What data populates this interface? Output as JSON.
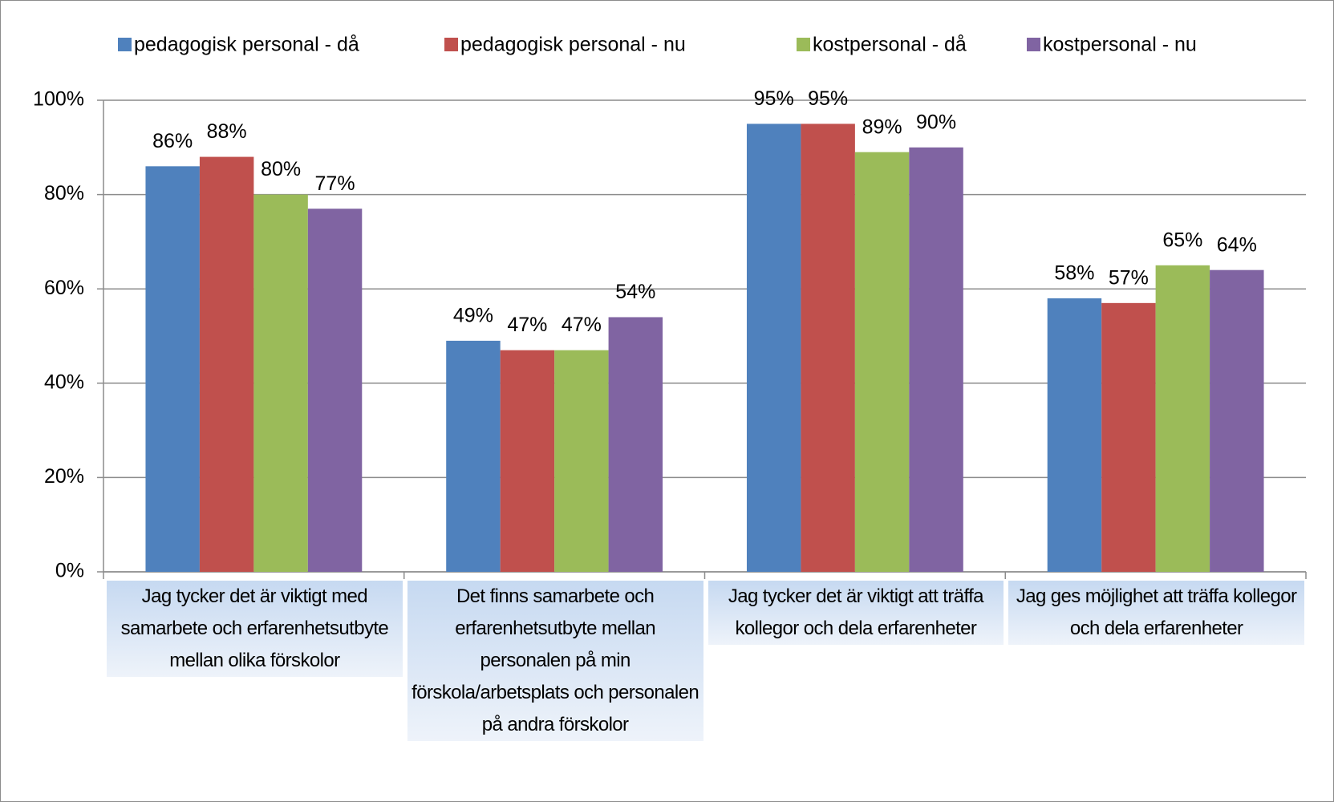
{
  "chart_data": {
    "type": "bar",
    "categories": [
      "Jag tycker det är viktigt med samarbete och erfarenhetsutbyte mellan olika förskolor",
      "Det finns samarbete och erfarenhetsutbyte mellan personalen på min förskola/arbetsplats och personalen på andra förskolor",
      "Jag tycker det är viktigt att träffa kollegor och dela erfarenheter",
      "Jag ges möjlighet att träffa kollegor och dela erfarenheter"
    ],
    "series": [
      {
        "name": "pedagogisk personal - då",
        "color": "#4f81bd",
        "values": [
          86,
          49,
          95,
          58
        ],
        "value_labels": [
          "86%",
          "49%",
          "95%",
          "58%"
        ]
      },
      {
        "name": "pedagogisk personal - nu",
        "color": "#c0504d",
        "values": [
          88,
          47,
          95,
          57
        ],
        "value_labels": [
          "88%",
          "47%",
          "95%",
          "57%"
        ]
      },
      {
        "name": "kostpersonal - då",
        "color": "#9bbb59",
        "values": [
          80,
          47,
          89,
          65
        ],
        "value_labels": [
          "80%",
          "47%",
          "89%",
          "65%"
        ]
      },
      {
        "name": "kostpersonal - nu",
        "color": "#8064a2",
        "values": [
          77,
          54,
          90,
          64
        ],
        "value_labels": [
          "77%",
          "54%",
          "90%",
          "64%"
        ]
      }
    ],
    "ylim": [
      0,
      100
    ],
    "yticks": [
      {
        "value": 0,
        "label": "0%"
      },
      {
        "value": 20,
        "label": "20%"
      },
      {
        "value": 40,
        "label": "40%"
      },
      {
        "value": 60,
        "label": "60%"
      },
      {
        "value": 80,
        "label": "80%"
      },
      {
        "value": 100,
        "label": "100%"
      }
    ],
    "grid": true,
    "legend": "top"
  }
}
